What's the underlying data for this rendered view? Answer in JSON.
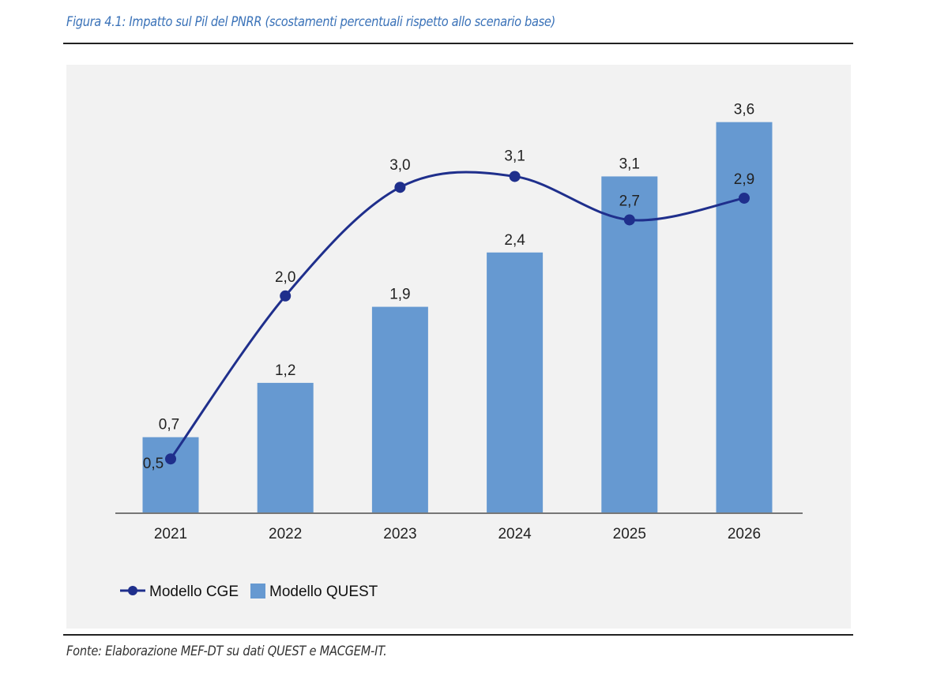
{
  "figure": {
    "title": "Figura 4.1: Impatto sul Pil del PNRR (scostamenti percentuali rispetto allo scenario base)",
    "source": "Fonte: Elaborazione MEF-DT su dati QUEST e MACGEM-IT."
  },
  "colors": {
    "bar": "#6699d1",
    "line": "#1f2f8c",
    "title": "#3a72b8",
    "plot_background": "#f2f2f2"
  },
  "chart_data": {
    "type": "bar",
    "title": "",
    "xlabel": "",
    "ylabel": "",
    "categories": [
      "2021",
      "2022",
      "2023",
      "2024",
      "2025",
      "2026"
    ],
    "ylim": [
      0,
      3.6
    ],
    "grid": false,
    "legend_position": "bottom-left",
    "series": [
      {
        "name": "Modello CGE",
        "type": "line",
        "values": [
          0.5,
          2.0,
          3.0,
          3.1,
          2.7,
          2.9
        ],
        "labels": [
          "0,5",
          "2,0",
          "3,0",
          "3,1",
          "2,7",
          "2,9"
        ]
      },
      {
        "name": "Modello QUEST",
        "type": "bar",
        "values": [
          0.7,
          1.2,
          1.9,
          2.4,
          3.1,
          3.6
        ],
        "labels": [
          "0,7",
          "1,2",
          "1,9",
          "2,4",
          "3,1",
          "3,6"
        ]
      }
    ]
  }
}
